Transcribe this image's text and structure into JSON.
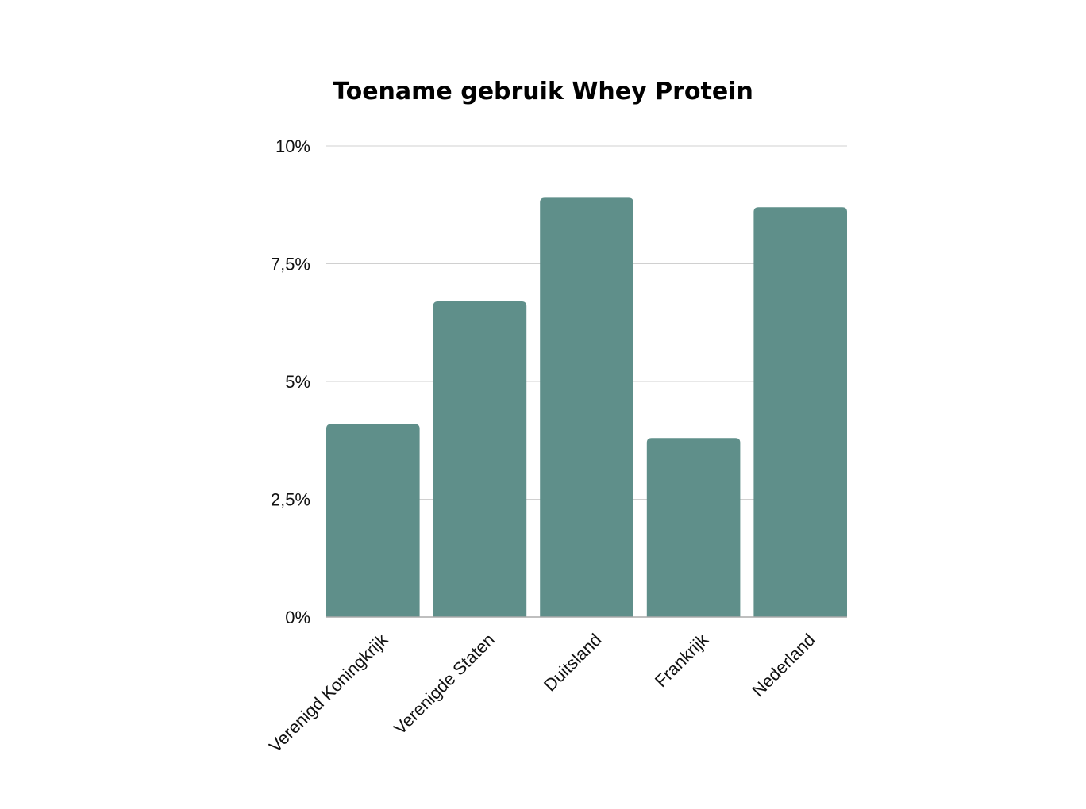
{
  "chart_data": {
    "type": "bar",
    "title": "Toename gebruik Whey Protein",
    "xlabel": "",
    "ylabel": "",
    "categories": [
      "Verenigd Koningkrijk",
      "Verenigde Staten",
      "Duitsland",
      "Frankrijk",
      "Nederland"
    ],
    "values": [
      4.1,
      6.7,
      8.9,
      3.8,
      8.7
    ],
    "ylim": [
      0,
      10
    ],
    "yticks": [
      0,
      2.5,
      5,
      7.5,
      10
    ],
    "ytick_labels": [
      "0%",
      "2,5%",
      "5%",
      "7,5%",
      "10%"
    ],
    "grid": true,
    "legend": "none",
    "colors": {
      "bar": "#5f8f8a",
      "grid": "#d0d0d0",
      "axis": "#aaaaaa"
    }
  }
}
